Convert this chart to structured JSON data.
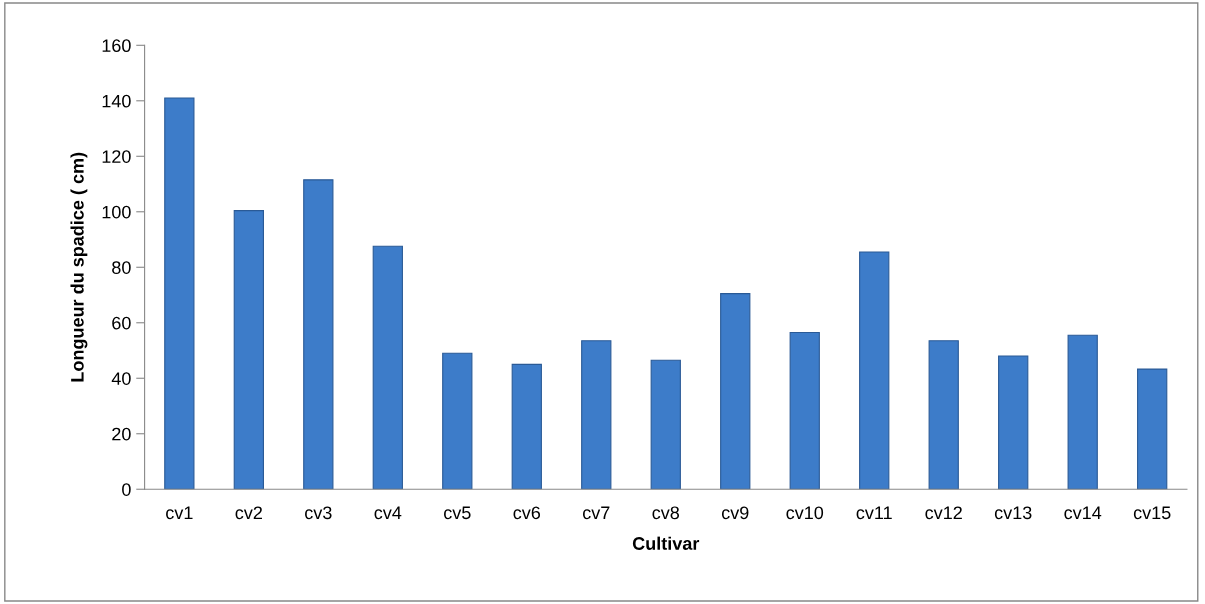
{
  "chart_data": {
    "type": "bar",
    "xlabel": "Cultivar",
    "ylabel": "Longueur du spadice ( cm)",
    "categories": [
      "cv1",
      "cv2",
      "cv3",
      "cv4",
      "cv5",
      "cv6",
      "cv7",
      "cv8",
      "cv9",
      "cv10",
      "cv11",
      "cv12",
      "cv13",
      "cv14",
      "cv15"
    ],
    "values": [
      141,
      100.4,
      111.5,
      87.6,
      49,
      45,
      53.5,
      46.5,
      70.5,
      56.5,
      85.5,
      53.5,
      48,
      55.5,
      43.3
    ],
    "color": "#3d7cc9",
    "ylim": [
      0,
      160
    ],
    "yticks": [
      0,
      20,
      40,
      60,
      80,
      100,
      120,
      140,
      160
    ],
    "grid": false
  }
}
